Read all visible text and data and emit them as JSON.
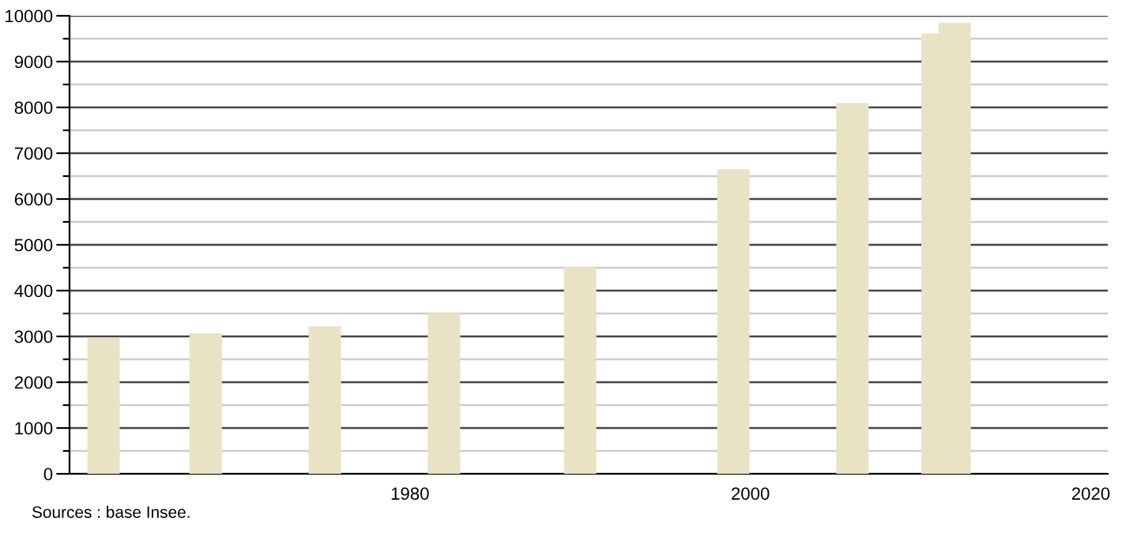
{
  "chart_data": {
    "type": "bar",
    "x": [
      1962,
      1968,
      1975,
      1982,
      1990,
      1999,
      2006,
      2011,
      2012
    ],
    "values": [
      2970,
      3070,
      3220,
      3510,
      4510,
      6650,
      8100,
      9610,
      9850
    ],
    "color": "#e8e3c4",
    "xlim": [
      1960,
      2021
    ],
    "xticks": [
      1980,
      2000,
      2020
    ],
    "ylim": [
      0,
      10000
    ],
    "yticks": [
      0,
      {
        "value": 500,
        "label": null
      },
      1000,
      {
        "value": 1500,
        "label": null
      },
      2000,
      {
        "value": 2500,
        "label": null
      },
      3000,
      {
        "value": 3500,
        "label": null
      },
      4000,
      {
        "value": 4500,
        "label": null
      },
      5000,
      {
        "value": 5500,
        "label": null
      },
      6000,
      {
        "value": 6500,
        "label": null
      },
      7000,
      {
        "value": 7500,
        "label": null
      },
      8000,
      {
        "value": 8500,
        "label": null
      },
      9000,
      {
        "value": 9500,
        "label": null
      },
      10000
    ],
    "grid": "y",
    "annotations": [
      "Sources : base Insee."
    ]
  }
}
